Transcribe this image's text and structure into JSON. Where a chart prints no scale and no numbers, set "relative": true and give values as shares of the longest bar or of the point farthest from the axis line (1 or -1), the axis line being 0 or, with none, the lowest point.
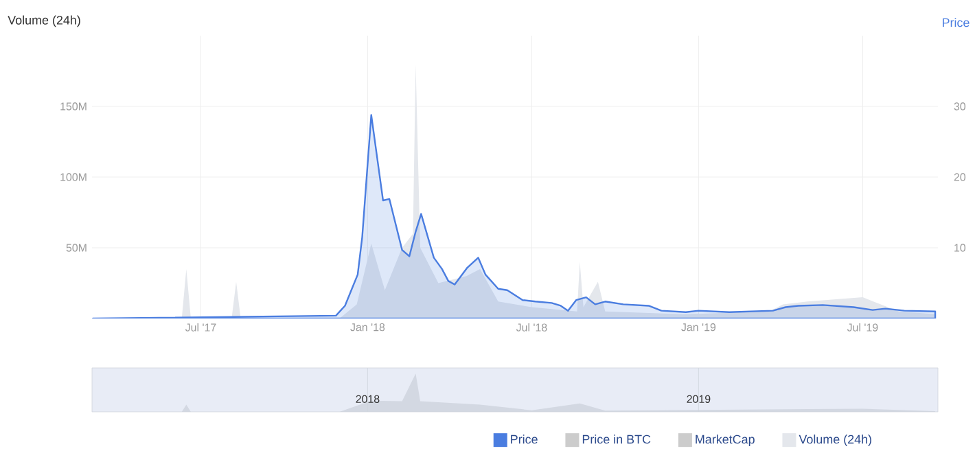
{
  "chart_data": [
    {
      "type": "area",
      "ylabel": "Volume (24h)",
      "y2label": "Price",
      "xlim": [
        "2017-03-03",
        "2019-09-22"
      ],
      "ylim": [
        0,
        200000000
      ],
      "y2lim": [
        0,
        40
      ],
      "xticks": [
        {
          "value": "2017-07-01",
          "label": "Jul '17"
        },
        {
          "value": "2018-01-01",
          "label": "Jan '18"
        },
        {
          "value": "2018-07-01",
          "label": "Jul '18"
        },
        {
          "value": "2019-01-01",
          "label": "Jan '19"
        },
        {
          "value": "2019-07-01",
          "label": "Jul '19"
        }
      ],
      "yticks": [
        {
          "value": 50000000,
          "label": "50M"
        },
        {
          "value": 100000000,
          "label": "100M"
        },
        {
          "value": 150000000,
          "label": "150M"
        }
      ],
      "y2ticks": [
        10,
        20,
        30
      ],
      "grid": true,
      "legend": "bottom",
      "series": [
        {
          "name": "Price",
          "color": "#4a7de0",
          "axis": "y2",
          "x": [
            "2017-03-04",
            "2017-11-27",
            "2017-12-07",
            "2017-12-21",
            "2017-12-26",
            "2018-01-05",
            "2018-01-18",
            "2018-01-25",
            "2018-02-08",
            "2018-02-16",
            "2018-02-23",
            "2018-03-01",
            "2018-03-15",
            "2018-03-24",
            "2018-03-31",
            "2018-04-07",
            "2018-04-21",
            "2018-05-03",
            "2018-05-11",
            "2018-05-25",
            "2018-06-04",
            "2018-06-21",
            "2018-07-05",
            "2018-07-23",
            "2018-08-02",
            "2018-08-10",
            "2018-08-19",
            "2018-08-30",
            "2018-09-09",
            "2018-09-20",
            "2018-10-10",
            "2018-11-07",
            "2018-11-21",
            "2018-12-18",
            "2019-01-01",
            "2019-02-04",
            "2019-03-24",
            "2019-04-07",
            "2019-04-21",
            "2019-05-18",
            "2019-06-21",
            "2019-07-12",
            "2019-07-26",
            "2019-08-16",
            "2019-09-19"
          ],
          "values": [
            0,
            0.4,
            1.8,
            6.2,
            11.5,
            28.8,
            16.7,
            16.9,
            9.7,
            8.8,
            12.3,
            14.8,
            8.6,
            7.0,
            5.3,
            4.8,
            7.2,
            8.6,
            6.2,
            4.2,
            4.0,
            2.6,
            2.4,
            2.2,
            1.8,
            1.1,
            2.6,
            3.0,
            2.0,
            2.4,
            2.0,
            1.8,
            1.1,
            0.9,
            1.1,
            0.9,
            1.1,
            1.6,
            1.8,
            1.9,
            1.6,
            1.2,
            1.4,
            1.1,
            1.0
          ]
        },
        {
          "name": "Price in BTC",
          "color": "#cccccc"
        },
        {
          "name": "MarketCap",
          "color": "#cccccc"
        },
        {
          "name": "Volume (24h)",
          "color": "#e4e7ec",
          "x": [
            "2017-03-04",
            "2017-06-10",
            "2017-06-15",
            "2017-06-20",
            "2017-08-04",
            "2017-08-09",
            "2017-08-14",
            "2017-12-01",
            "2017-12-20",
            "2018-01-05",
            "2018-01-20",
            "2018-02-08",
            "2018-02-20",
            "2018-02-23",
            "2018-02-28",
            "2018-03-20",
            "2018-04-20",
            "2018-05-05",
            "2018-05-25",
            "2018-07-01",
            "2018-08-20",
            "2018-08-23",
            "2018-08-27",
            "2018-09-12",
            "2018-09-20",
            "2018-12-15",
            "2019-03-20",
            "2019-04-04",
            "2019-05-01",
            "2019-07-01",
            "2019-08-10",
            "2019-09-19"
          ],
          "values": [
            0,
            0,
            35000000,
            0,
            0,
            26000000,
            0,
            0,
            10000000,
            53000000,
            20000000,
            50000000,
            60000000,
            180000000,
            50000000,
            25000000,
            30000000,
            35000000,
            12000000,
            8000000,
            5000000,
            40000000,
            8000000,
            26000000,
            5000000,
            3000000,
            5000000,
            10000000,
            12000000,
            15000000,
            5000000,
            3000000
          ]
        }
      ]
    },
    {
      "type": "area",
      "relative": true,
      "xlim": [
        "2017-03-03",
        "2019-09-22"
      ],
      "xticks": [
        {
          "value": "2018-01-01",
          "label": "2018"
        },
        {
          "value": "2019-01-01",
          "label": "2019"
        }
      ],
      "tick_labels": "x",
      "grid": "x",
      "color": "#d3d8e2",
      "x": [
        "2017-03-04",
        "2017-06-10",
        "2017-06-15",
        "2017-06-20",
        "2017-12-01",
        "2018-01-05",
        "2018-02-08",
        "2018-02-23",
        "2018-02-28",
        "2018-05-05",
        "2018-07-01",
        "2018-08-23",
        "2018-09-20",
        "2019-05-01",
        "2019-07-01",
        "2019-09-19"
      ],
      "values": [
        0,
        0,
        0.19,
        0,
        0,
        0.29,
        0.28,
        1,
        0.28,
        0.19,
        0.04,
        0.22,
        0.03,
        0.07,
        0.08,
        0.02
      ]
    }
  ]
}
